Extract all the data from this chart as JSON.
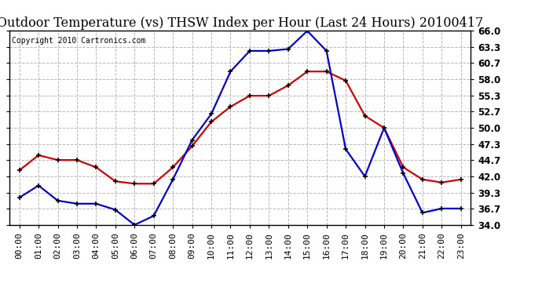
{
  "title": "Outdoor Temperature (vs) THSW Index per Hour (Last 24 Hours) 20100417",
  "copyright": "Copyright 2010 Cartronics.com",
  "hours": [
    "00:00",
    "01:00",
    "02:00",
    "03:00",
    "04:00",
    "05:00",
    "06:00",
    "07:00",
    "08:00",
    "09:00",
    "10:00",
    "11:00",
    "12:00",
    "13:00",
    "14:00",
    "15:00",
    "16:00",
    "17:00",
    "18:00",
    "19:00",
    "20:00",
    "21:00",
    "22:00",
    "23:00"
  ],
  "temp_red": [
    43.0,
    45.5,
    44.7,
    44.7,
    43.5,
    41.2,
    40.8,
    40.8,
    43.5,
    47.0,
    51.0,
    53.5,
    55.3,
    55.3,
    57.0,
    59.3,
    59.3,
    57.8,
    52.0,
    50.0,
    43.5,
    41.5,
    41.0,
    41.5
  ],
  "thsw_blue": [
    38.5,
    40.5,
    38.0,
    37.5,
    37.5,
    36.5,
    34.0,
    35.5,
    41.5,
    48.0,
    52.3,
    59.3,
    62.7,
    62.7,
    63.0,
    66.0,
    62.7,
    46.5,
    42.0,
    50.0,
    42.5,
    36.0,
    36.7,
    36.7
  ],
  "ylim_min": 34.0,
  "ylim_max": 66.0,
  "yticks": [
    34.0,
    36.7,
    39.3,
    42.0,
    44.7,
    47.3,
    50.0,
    52.7,
    55.3,
    58.0,
    60.7,
    63.3,
    66.0
  ],
  "red_color": "#cc0000",
  "blue_color": "#0000cc",
  "bg_color": "#ffffff",
  "plot_bg_color": "#ffffff",
  "grid_color": "#b0b0b0",
  "title_fontsize": 11.5,
  "copyright_fontsize": 7.0,
  "tick_fontsize": 8.0,
  "ytick_fontsize": 8.5,
  "line_width": 1.6,
  "marker": "+",
  "marker_size": 5,
  "marker_color": "#000000",
  "marker_edge_width": 1.2
}
